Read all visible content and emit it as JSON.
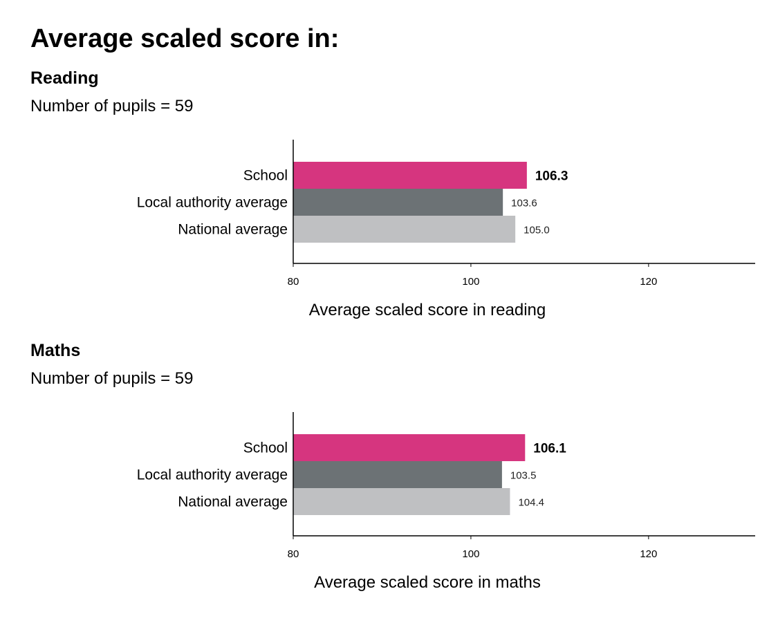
{
  "title": "Average scaled score in:",
  "colors": {
    "school": "#d6357f",
    "local_authority": "#6c7275",
    "national": "#bfc0c2"
  },
  "chart_data": [
    {
      "type": "bar",
      "orientation": "horizontal",
      "title": "Reading",
      "subtitle": "Number of pupils = 59",
      "categories": [
        "School",
        "Local authority average",
        "National average"
      ],
      "values": [
        106.3,
        103.6,
        105.0
      ],
      "value_labels": [
        "106.3",
        "103.6",
        "105.0"
      ],
      "xlabel": "Average scaled score in reading",
      "ylabel": "",
      "xlim": [
        80,
        132
      ],
      "xticks": [
        80,
        100,
        120
      ],
      "grid": false
    },
    {
      "type": "bar",
      "orientation": "horizontal",
      "title": "Maths",
      "subtitle": "Number of pupils = 59",
      "categories": [
        "School",
        "Local authority average",
        "National average"
      ],
      "values": [
        106.1,
        103.5,
        104.4
      ],
      "value_labels": [
        "106.1",
        "103.5",
        "104.4"
      ],
      "xlabel": "Average scaled score in maths",
      "ylabel": "",
      "xlim": [
        80,
        132
      ],
      "xticks": [
        80,
        100,
        120
      ],
      "grid": false
    }
  ]
}
